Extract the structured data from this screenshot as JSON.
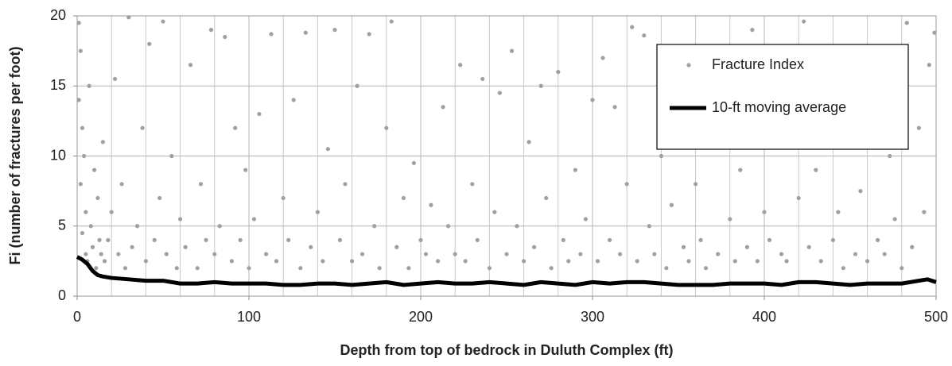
{
  "chart_data": {
    "type": "scatter",
    "x_label": "Depth from top of bedrock in Duluth Complex (ft)",
    "y_label": "Fi (number of fractures per foot)",
    "xlim": [
      0,
      500
    ],
    "ylim": [
      0,
      20
    ],
    "xticks": [
      0,
      100,
      200,
      300,
      400,
      500
    ],
    "yticks": [
      0,
      5,
      10,
      15,
      20
    ],
    "x_minor_grid": [
      20,
      40,
      60,
      80,
      120,
      140,
      160,
      180,
      220,
      240,
      260,
      280,
      320,
      340,
      360,
      380,
      420,
      440,
      460,
      480
    ],
    "grid": true,
    "legend": "upper right",
    "series": [
      {
        "name": "Fracture Index",
        "type": "scatter",
        "color": "#a0a0a0",
        "x": [
          1,
          1,
          2,
          2,
          3,
          3,
          4,
          5,
          5,
          6,
          7,
          8,
          9,
          10,
          11,
          12,
          13,
          14,
          15,
          16,
          18,
          20,
          22,
          24,
          26,
          28,
          30,
          32,
          35,
          38,
          40,
          42,
          45,
          48,
          50,
          52,
          55,
          58,
          60,
          63,
          66,
          70,
          72,
          75,
          78,
          80,
          83,
          86,
          90,
          92,
          95,
          98,
          100,
          103,
          106,
          110,
          113,
          116,
          120,
          123,
          126,
          130,
          133,
          136,
          140,
          143,
          146,
          150,
          153,
          156,
          160,
          163,
          166,
          170,
          173,
          176,
          180,
          183,
          186,
          190,
          193,
          196,
          200,
          203,
          206,
          210,
          213,
          216,
          220,
          223,
          226,
          230,
          233,
          236,
          240,
          243,
          246,
          250,
          253,
          256,
          260,
          263,
          266,
          270,
          273,
          276,
          280,
          283,
          286,
          290,
          293,
          296,
          300,
          303,
          306,
          310,
          313,
          316,
          320,
          323,
          326,
          330,
          333,
          336,
          340,
          343,
          346,
          350,
          353,
          356,
          360,
          363,
          366,
          370,
          373,
          376,
          380,
          383,
          386,
          390,
          393,
          396,
          400,
          403,
          406,
          410,
          413,
          416,
          420,
          423,
          426,
          430,
          433,
          436,
          440,
          443,
          446,
          450,
          453,
          456,
          460,
          463,
          466,
          470,
          473,
          476,
          480,
          483,
          486,
          490,
          493,
          496,
          499
        ],
        "values": [
          19.5,
          14,
          17.5,
          8,
          12,
          4.5,
          10,
          6,
          3,
          2.5,
          15,
          5,
          3.5,
          9,
          2,
          7,
          4,
          3,
          11,
          2.5,
          4,
          6,
          15.5,
          3,
          8,
          2,
          19.9,
          3.5,
          5,
          12,
          2.5,
          18,
          4,
          7,
          19.6,
          3,
          10,
          2,
          5.5,
          3.5,
          16.5,
          2,
          8,
          4,
          19,
          3,
          5,
          18.5,
          2.5,
          12,
          4,
          9,
          2,
          5.5,
          13,
          3,
          18.7,
          2.5,
          7,
          4,
          14,
          2,
          18.8,
          3.5,
          6,
          2.5,
          10.5,
          19,
          4,
          8,
          2.5,
          15,
          3,
          18.7,
          5,
          2,
          12,
          19.6,
          3.5,
          7,
          2,
          9.5,
          4,
          3,
          6.5,
          2.5,
          13.5,
          5,
          3,
          16.5,
          2.5,
          8,
          4,
          15.5,
          2,
          6,
          14.5,
          3,
          17.5,
          5,
          2.5,
          11,
          3.5,
          15,
          7,
          2,
          16,
          4,
          2.5,
          9,
          3,
          5.5,
          14,
          2.5,
          17,
          4,
          13.5,
          3,
          8,
          19.2,
          2.5,
          18.6,
          5,
          3,
          10,
          2,
          6.5,
          15,
          3.5,
          2.5,
          8,
          4,
          2,
          12.5,
          3,
          17.5,
          5.5,
          2.5,
          9,
          3.5,
          19,
          2.5,
          6,
          4,
          11,
          3,
          2.5,
          16.5,
          7,
          19.6,
          3.5,
          9,
          2.5,
          13,
          4,
          6,
          2,
          14,
          3,
          7.5,
          2.5,
          16,
          4,
          3,
          10,
          5.5,
          2,
          19.5,
          3.5,
          12,
          6,
          16.5,
          18.8
        ]
      },
      {
        "name": "10-ft moving average",
        "type": "line",
        "color": "#000000",
        "x": [
          0,
          3,
          6,
          9,
          12,
          15,
          20,
          30,
          40,
          50,
          60,
          70,
          80,
          90,
          100,
          110,
          120,
          130,
          140,
          150,
          160,
          170,
          180,
          190,
          200,
          210,
          220,
          230,
          240,
          250,
          260,
          270,
          280,
          290,
          300,
          310,
          320,
          330,
          340,
          350,
          360,
          370,
          380,
          390,
          400,
          410,
          420,
          430,
          440,
          450,
          460,
          470,
          480,
          490,
          495,
          500
        ],
        "values": [
          2.8,
          2.6,
          2.3,
          1.8,
          1.5,
          1.4,
          1.3,
          1.2,
          1.1,
          1.1,
          0.9,
          0.9,
          1.0,
          0.9,
          0.9,
          0.9,
          0.8,
          0.8,
          0.9,
          0.9,
          0.8,
          0.9,
          1.0,
          0.8,
          0.9,
          1.0,
          0.9,
          0.9,
          1.0,
          0.9,
          0.8,
          1.0,
          0.9,
          0.8,
          1.0,
          0.9,
          1.0,
          1.0,
          0.9,
          0.8,
          0.8,
          0.8,
          0.9,
          0.9,
          0.9,
          0.8,
          1.0,
          1.0,
          0.9,
          0.8,
          0.9,
          0.9,
          0.9,
          1.1,
          1.2,
          1.0
        ]
      }
    ]
  }
}
